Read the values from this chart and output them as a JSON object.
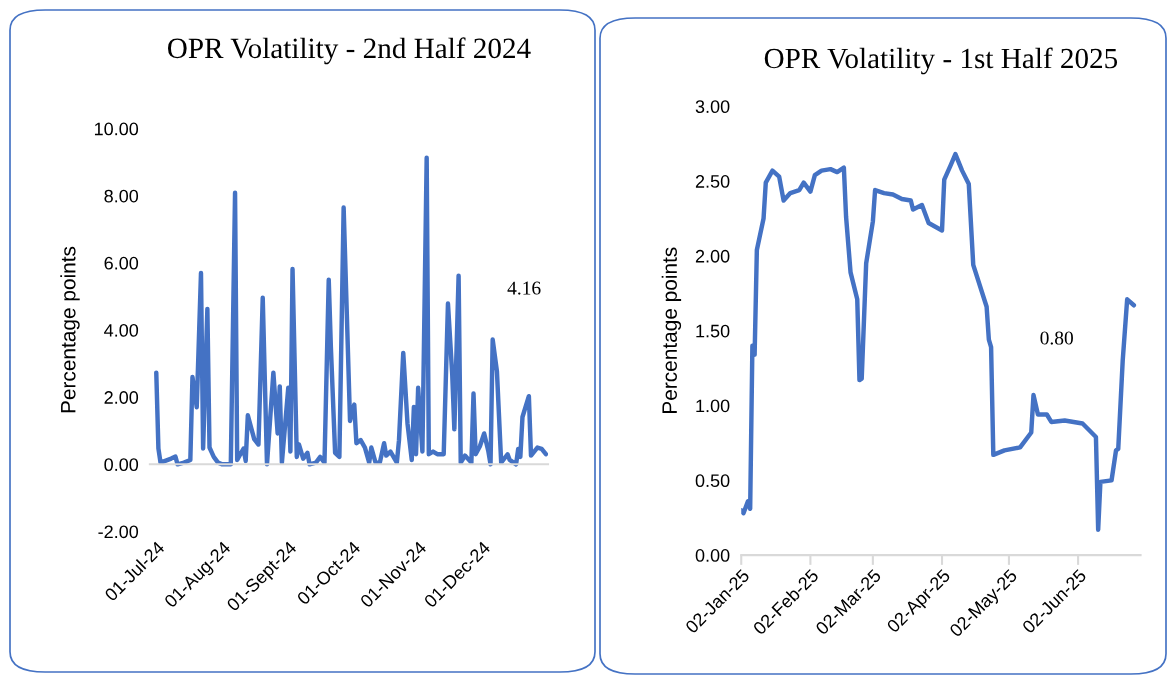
{
  "chart_data": [
    {
      "type": "line",
      "title": "OPR Volatility - 2nd Half 2024",
      "ylabel": "Percentage points",
      "x": [
        "2024-07-01",
        "2024-07-02",
        "2024-07-03",
        "2024-07-08",
        "2024-07-10",
        "2024-07-11",
        "2024-07-14",
        "2024-07-17",
        "2024-07-18",
        "2024-07-20",
        "2024-07-22",
        "2024-07-23",
        "2024-07-25",
        "2024-07-26",
        "2024-07-28",
        "2024-07-30",
        "2024-08-01",
        "2024-08-05",
        "2024-08-07",
        "2024-08-08",
        "2024-08-11",
        "2024-08-12",
        "2024-08-13",
        "2024-08-16",
        "2024-08-18",
        "2024-08-20",
        "2024-08-22",
        "2024-08-25",
        "2024-08-27",
        "2024-08-28",
        "2024-08-29",
        "2024-09-01",
        "2024-09-02",
        "2024-09-03",
        "2024-09-05",
        "2024-09-06",
        "2024-09-08",
        "2024-09-10",
        "2024-09-11",
        "2024-09-14",
        "2024-09-16",
        "2024-09-18",
        "2024-09-20",
        "2024-09-21",
        "2024-09-23",
        "2024-09-25",
        "2024-09-27",
        "2024-09-30",
        "2024-10-02",
        "2024-10-03",
        "2024-10-05",
        "2024-10-07",
        "2024-10-09",
        "2024-10-10",
        "2024-10-12",
        "2024-10-14",
        "2024-10-16",
        "2024-10-17",
        "2024-10-19",
        "2024-10-22",
        "2024-10-23",
        "2024-10-25",
        "2024-10-27",
        "2024-10-29",
        "2024-10-30",
        "2024-10-31",
        "2024-11-01",
        "2024-11-03",
        "2024-11-05",
        "2024-11-06",
        "2024-11-08",
        "2024-11-10",
        "2024-11-13",
        "2024-11-15",
        "2024-11-17",
        "2024-11-18",
        "2024-11-20",
        "2024-11-21",
        "2024-11-23",
        "2024-11-26",
        "2024-11-27",
        "2024-11-28",
        "2024-11-30",
        "2024-12-02",
        "2024-12-04",
        "2024-12-05",
        "2024-12-06",
        "2024-12-08",
        "2024-12-10",
        "2024-12-13",
        "2024-12-14",
        "2024-12-17",
        "2024-12-18",
        "2024-12-19",
        "2024-12-20",
        "2024-12-23",
        "2024-12-24",
        "2024-12-27",
        "2024-12-29",
        "2024-12-31"
      ],
      "series": [
        {
          "color": "#4472c4",
          "values": [
            2.73,
            0.47,
            0.05,
            0.17,
            0.23,
            0.0,
            0.05,
            0.13,
            2.6,
            1.7,
            5.7,
            0.47,
            4.63,
            0.5,
            0.22,
            0.05,
            0.0,
            0.0,
            8.09,
            0.13,
            0.47,
            0.1,
            1.46,
            0.75,
            0.59,
            4.96,
            0.0,
            2.73,
            0.92,
            2.32,
            0.05,
            2.28,
            0.38,
            5.82,
            0.22,
            0.59,
            0.17,
            0.34,
            0.0,
            0.05,
            0.22,
            0.05,
            5.5,
            3.5,
            0.34,
            0.22,
            7.65,
            1.29,
            1.78,
            0.63,
            0.72,
            0.5,
            0.05,
            0.5,
            0.05,
            0.05,
            0.63,
            0.26,
            0.38,
            0.05,
            0.72,
            3.32,
            1.21,
            0.13,
            1.71,
            0.3,
            2.28,
            0.38,
            9.13,
            0.3,
            0.38,
            0.3,
            0.3,
            4.79,
            2.69,
            1.04,
            5.62,
            0.05,
            0.26,
            0.05,
            2.11,
            0.3,
            0.54,
            0.92,
            0.38,
            0.0,
            3.72,
            2.77,
            0.05,
            0.3,
            0.13,
            0.0,
            0.46,
            0.22,
            1.41,
            2.03,
            0.26,
            0.5,
            0.46,
            0.3
          ]
        }
      ],
      "xlim": [
        "2024-06-28",
        "2025-01-01"
      ],
      "xticks": [
        {
          "value": "2024-07-01",
          "label": "01-Jul-24"
        },
        {
          "value": "2024-08-01",
          "label": "01-Aug-24"
        },
        {
          "value": "2024-09-01",
          "label": "01-Sept-24"
        },
        {
          "value": "2024-10-01",
          "label": "01-Oct-24"
        },
        {
          "value": "2024-11-01",
          "label": "01-Nov-24"
        },
        {
          "value": "2024-12-01",
          "label": "01-Dec-24"
        }
      ],
      "ylim": [
        -2,
        10
      ],
      "yticks": [
        {
          "value": -2,
          "label": "-2.00"
        },
        {
          "value": 0,
          "label": "0.00"
        },
        {
          "value": 2,
          "label": "2.00"
        },
        {
          "value": 4,
          "label": "4.00"
        },
        {
          "value": 6,
          "label": "6.00"
        },
        {
          "value": 8,
          "label": "8.00"
        },
        {
          "value": 10,
          "label": "10.00"
        }
      ],
      "annotations": [
        "4.16"
      ]
    },
    {
      "type": "line",
      "title": "OPR Volatility - 1st Half 2025",
      "ylabel": "Percentage points",
      "x": [
        "2025-01-02",
        "2025-01-03",
        "2025-01-05",
        "2025-01-06",
        "2025-01-07",
        "2025-01-08",
        "2025-01-09",
        "2025-01-12",
        "2025-01-13",
        "2025-01-16",
        "2025-01-19",
        "2025-01-21",
        "2025-01-24",
        "2025-01-28",
        "2025-01-30",
        "2025-02-02",
        "2025-02-04",
        "2025-02-07",
        "2025-02-11",
        "2025-02-14",
        "2025-02-17",
        "2025-02-18",
        "2025-02-20",
        "2025-02-23",
        "2025-02-24",
        "2025-02-25",
        "2025-02-27",
        "2025-03-02",
        "2025-03-03",
        "2025-03-07",
        "2025-03-11",
        "2025-03-15",
        "2025-03-19",
        "2025-03-20",
        "2025-03-24",
        "2025-03-27",
        "2025-04-02",
        "2025-04-03",
        "2025-04-06",
        "2025-04-08",
        "2025-04-11",
        "2025-04-14",
        "2025-04-16",
        "2025-04-22",
        "2025-04-23",
        "2025-04-24",
        "2025-04-25",
        "2025-04-30",
        "2025-05-07",
        "2025-05-12",
        "2025-05-13",
        "2025-05-15",
        "2025-05-19",
        "2025-05-21",
        "2025-05-27",
        "2025-06-04",
        "2025-06-10",
        "2025-06-11",
        "2025-06-12",
        "2025-06-17",
        "2025-06-19",
        "2025-06-20",
        "2025-06-22",
        "2025-06-24",
        "2025-06-27"
      ],
      "series": [
        {
          "color": "#4472c4",
          "values": [
            0.3,
            0.28,
            0.36,
            0.31,
            1.4,
            1.34,
            2.04,
            2.25,
            2.49,
            2.57,
            2.53,
            2.37,
            2.42,
            2.44,
            2.49,
            2.43,
            2.54,
            2.57,
            2.58,
            2.56,
            2.59,
            2.26,
            1.89,
            1.71,
            1.17,
            1.18,
            1.95,
            2.23,
            2.44,
            2.42,
            2.41,
            2.38,
            2.37,
            2.31,
            2.34,
            2.22,
            2.17,
            2.51,
            2.61,
            2.68,
            2.57,
            2.48,
            1.94,
            1.66,
            1.44,
            1.39,
            0.67,
            0.7,
            0.72,
            0.82,
            1.07,
            0.94,
            0.94,
            0.89,
            0.9,
            0.88,
            0.79,
            0.17,
            0.49,
            0.5,
            0.7,
            0.71,
            1.3,
            1.71,
            1.67
          ]
        }
      ],
      "xlim": [
        "2025-01-02",
        "2025-06-30"
      ],
      "xticks": [
        {
          "value": "2025-01-02",
          "label": "02-Jan-25"
        },
        {
          "value": "2025-02-02",
          "label": "02-Feb-25"
        },
        {
          "value": "2025-03-02",
          "label": "02-Mar-25"
        },
        {
          "value": "2025-04-02",
          "label": "02-Apr-25"
        },
        {
          "value": "2025-05-02",
          "label": "02-May-25"
        },
        {
          "value": "2025-06-02",
          "label": "02-Jun-25"
        }
      ],
      "ylim": [
        0,
        3
      ],
      "yticks": [
        {
          "value": 0,
          "label": "0.00"
        },
        {
          "value": 0.5,
          "label": "0.50"
        },
        {
          "value": 1,
          "label": "1.00"
        },
        {
          "value": 1.5,
          "label": "1.50"
        },
        {
          "value": 2,
          "label": "2.00"
        },
        {
          "value": 2.5,
          "label": "2.50"
        },
        {
          "value": 3,
          "label": "3.00"
        }
      ],
      "annotations": [
        "0.80"
      ]
    }
  ]
}
